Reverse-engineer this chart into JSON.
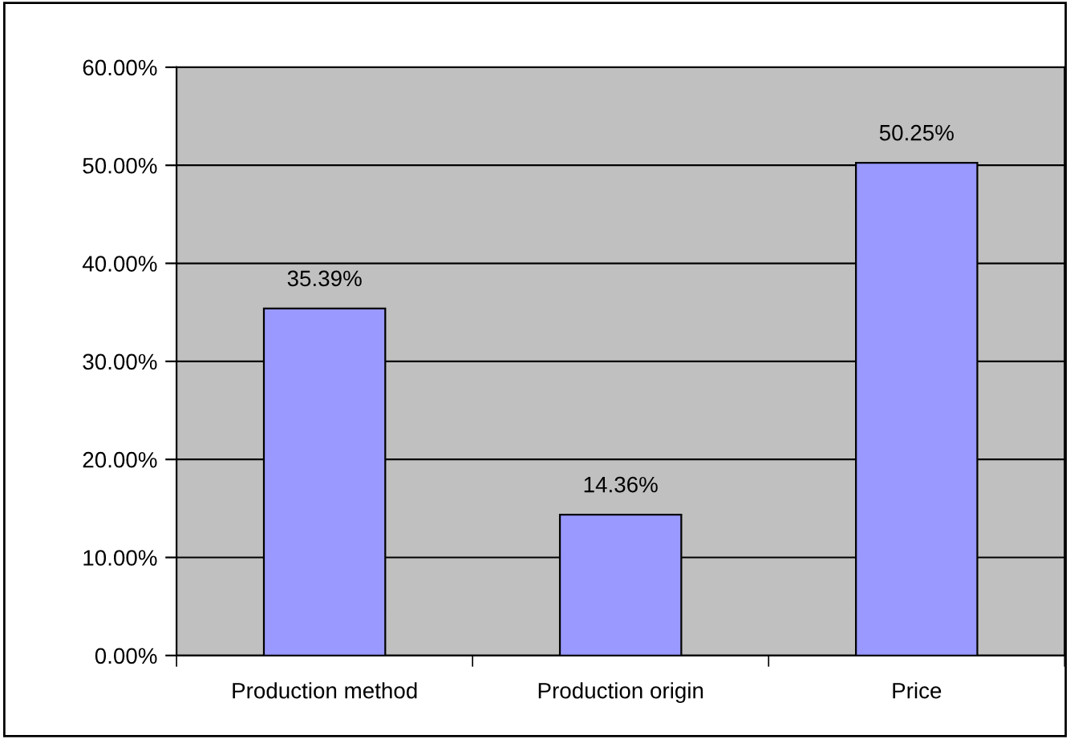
{
  "chart_data": {
    "type": "bar",
    "categories": [
      "Production method",
      "Production origin",
      "Price"
    ],
    "values": [
      35.39,
      14.36,
      50.25
    ],
    "color": "#9999ff",
    "value_labels": [
      "35.39%",
      "14.36%",
      "50.25%"
    ],
    "ylim": [
      0,
      60
    ],
    "yticks": [
      {
        "value": 0,
        "label": "0.00%"
      },
      {
        "value": 10,
        "label": "10.00%"
      },
      {
        "value": 20,
        "label": "20.00%"
      },
      {
        "value": 30,
        "label": "30.00%"
      },
      {
        "value": 40,
        "label": "40.00%"
      },
      {
        "value": 50,
        "label": "50.00%"
      },
      {
        "value": 60,
        "label": "60.00%"
      }
    ],
    "grid": "y",
    "legend": false
  }
}
